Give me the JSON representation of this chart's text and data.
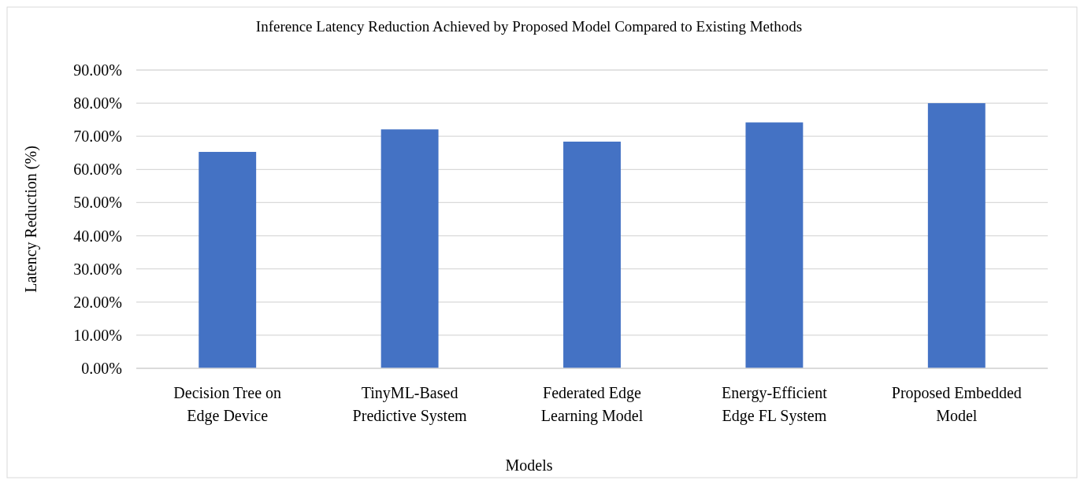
{
  "chart_data": {
    "type": "bar",
    "title": "Inference Latency Reduction Achieved by Proposed Model Compared to Existing Methods",
    "xlabel": "Models",
    "ylabel": "Latency Reduction (%)",
    "categories": [
      "Decision Tree on Edge Device",
      "TinyML-Based Predictive System",
      "Federated Edge Learning Model",
      "Energy-Efficient Edge FL System",
      "Proposed Embedded Model"
    ],
    "values": [
      65.3,
      72.1,
      68.4,
      74.2,
      80
    ],
    "color": "#4472c4",
    "ylim": [
      0,
      90
    ],
    "yticks": [
      {
        "value": 0,
        "label": "0.00%"
      },
      {
        "value": 10,
        "label": "10.00%"
      },
      {
        "value": 20,
        "label": "20.00%"
      },
      {
        "value": 30,
        "label": "30.00%"
      },
      {
        "value": 40,
        "label": "40.00%"
      },
      {
        "value": 50,
        "label": "50.00%"
      },
      {
        "value": 60,
        "label": "60.00%"
      },
      {
        "value": 70,
        "label": "70.00%"
      },
      {
        "value": 80,
        "label": "80.00%"
      },
      {
        "value": 90,
        "label": "90.00%"
      }
    ],
    "grid": "y"
  }
}
